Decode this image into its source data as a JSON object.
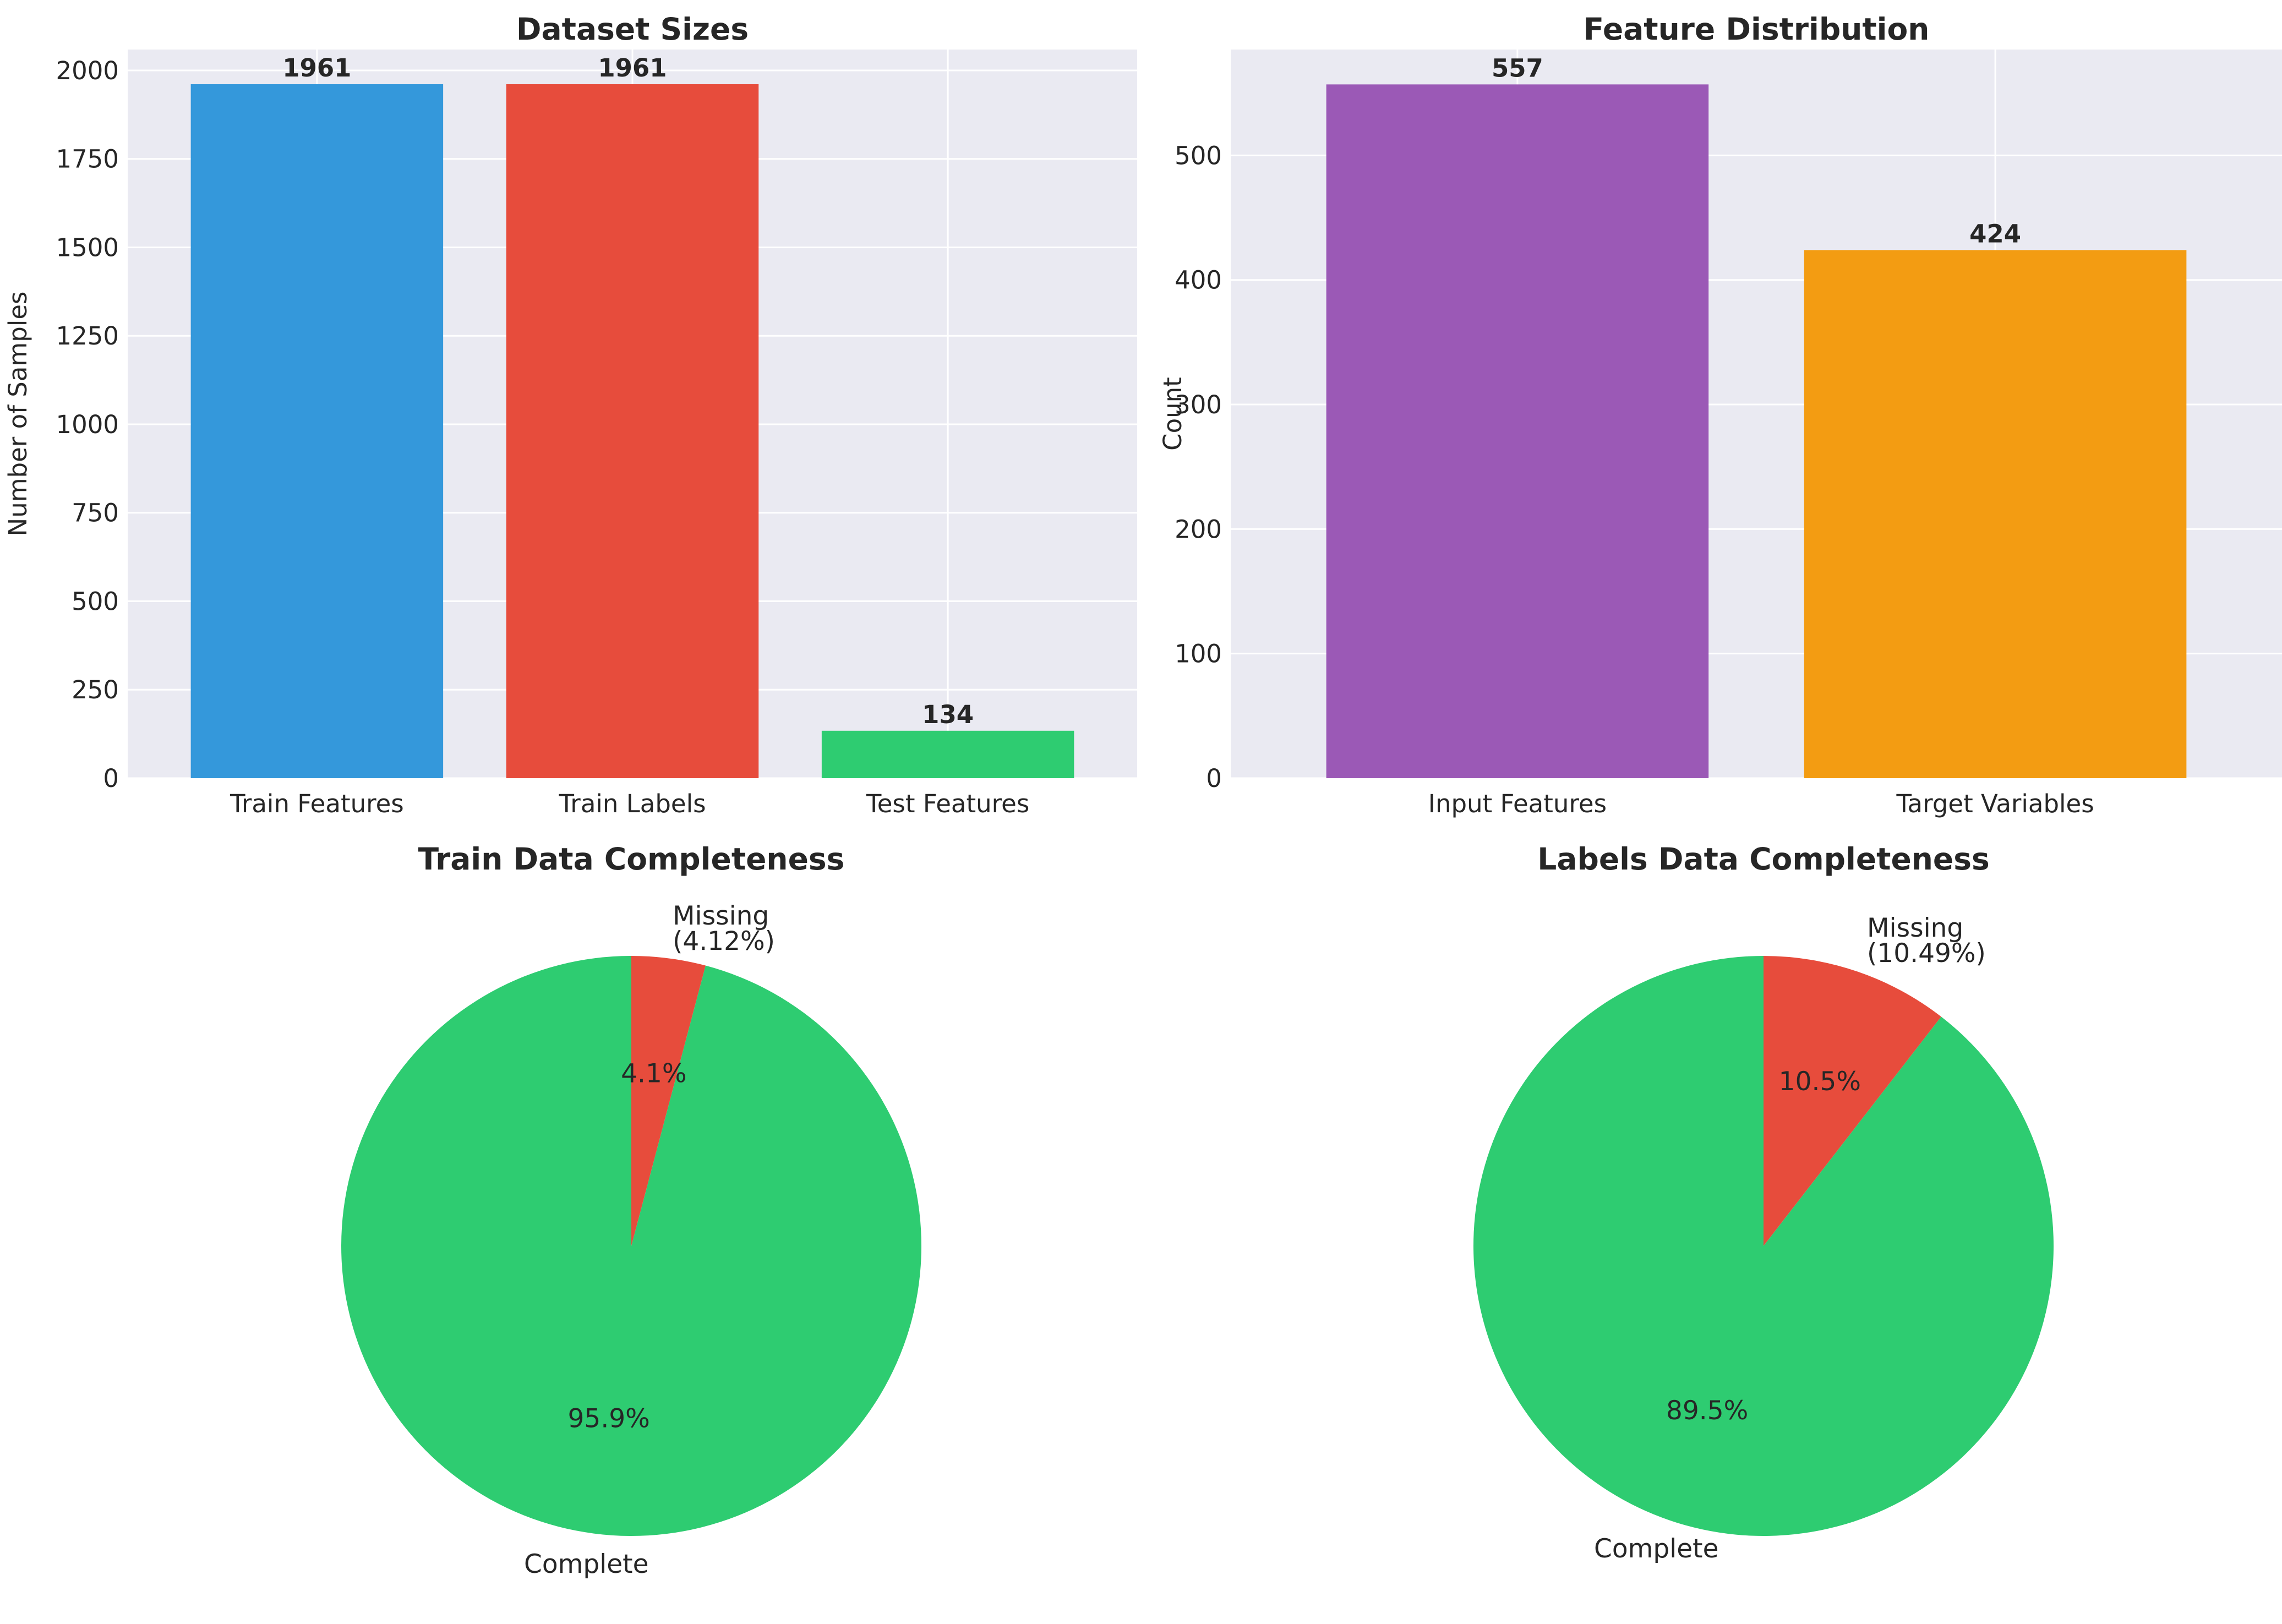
{
  "chart_data": [
    {
      "type": "bar",
      "title": "Dataset Sizes",
      "xlabel": "",
      "ylabel": "Number of Samples",
      "categories": [
        "Train Features",
        "Train Labels",
        "Test Features"
      ],
      "values": [
        1961,
        1961,
        134
      ],
      "value_labels": [
        "1961",
        "1961",
        "134"
      ],
      "colors": [
        "#3498db",
        "#e74c3c",
        "#2ecc71"
      ],
      "ylim": [
        0,
        2059
      ],
      "yticks": [
        0,
        250,
        500,
        750,
        1000,
        1250,
        1500,
        1750,
        2000
      ],
      "ytick_labels": [
        "0",
        "250",
        "500",
        "750",
        "1000",
        "1250",
        "1500",
        "1750",
        "2000"
      ],
      "grid": true
    },
    {
      "type": "bar",
      "title": "Feature Distribution",
      "xlabel": "",
      "ylabel": "Count",
      "categories": [
        "Input Features",
        "Target Variables"
      ],
      "values": [
        557,
        424
      ],
      "value_labels": [
        "557",
        "424"
      ],
      "colors": [
        "#9b59b6",
        "#f39c12"
      ],
      "ylim": [
        0,
        585
      ],
      "yticks": [
        0,
        100,
        200,
        300,
        400,
        500
      ],
      "ytick_labels": [
        "0",
        "100",
        "200",
        "300",
        "400",
        "500"
      ],
      "grid": true
    },
    {
      "type": "pie",
      "title": "Train Data Completeness",
      "slices": [
        {
          "label": "Complete",
          "value": 95.88,
          "pct": "95.9%",
          "color": "#2ecc71"
        },
        {
          "label": "Missing\n(4.12%)",
          "value": 4.12,
          "pct": "4.1%",
          "color": "#e74c3c"
        }
      ],
      "start_angle_deg": 90
    },
    {
      "type": "pie",
      "title": "Labels Data Completeness",
      "slices": [
        {
          "label": "Complete",
          "value": 89.51,
          "pct": "89.5%",
          "color": "#2ecc71"
        },
        {
          "label": "Missing\n(10.49%)",
          "value": 10.49,
          "pct": "10.5%",
          "color": "#e74c3c"
        }
      ],
      "start_angle_deg": 90
    }
  ],
  "style": {
    "axes_background": "#eaeaf2",
    "grid_color": "#ffffff",
    "text_color": "#262626"
  }
}
